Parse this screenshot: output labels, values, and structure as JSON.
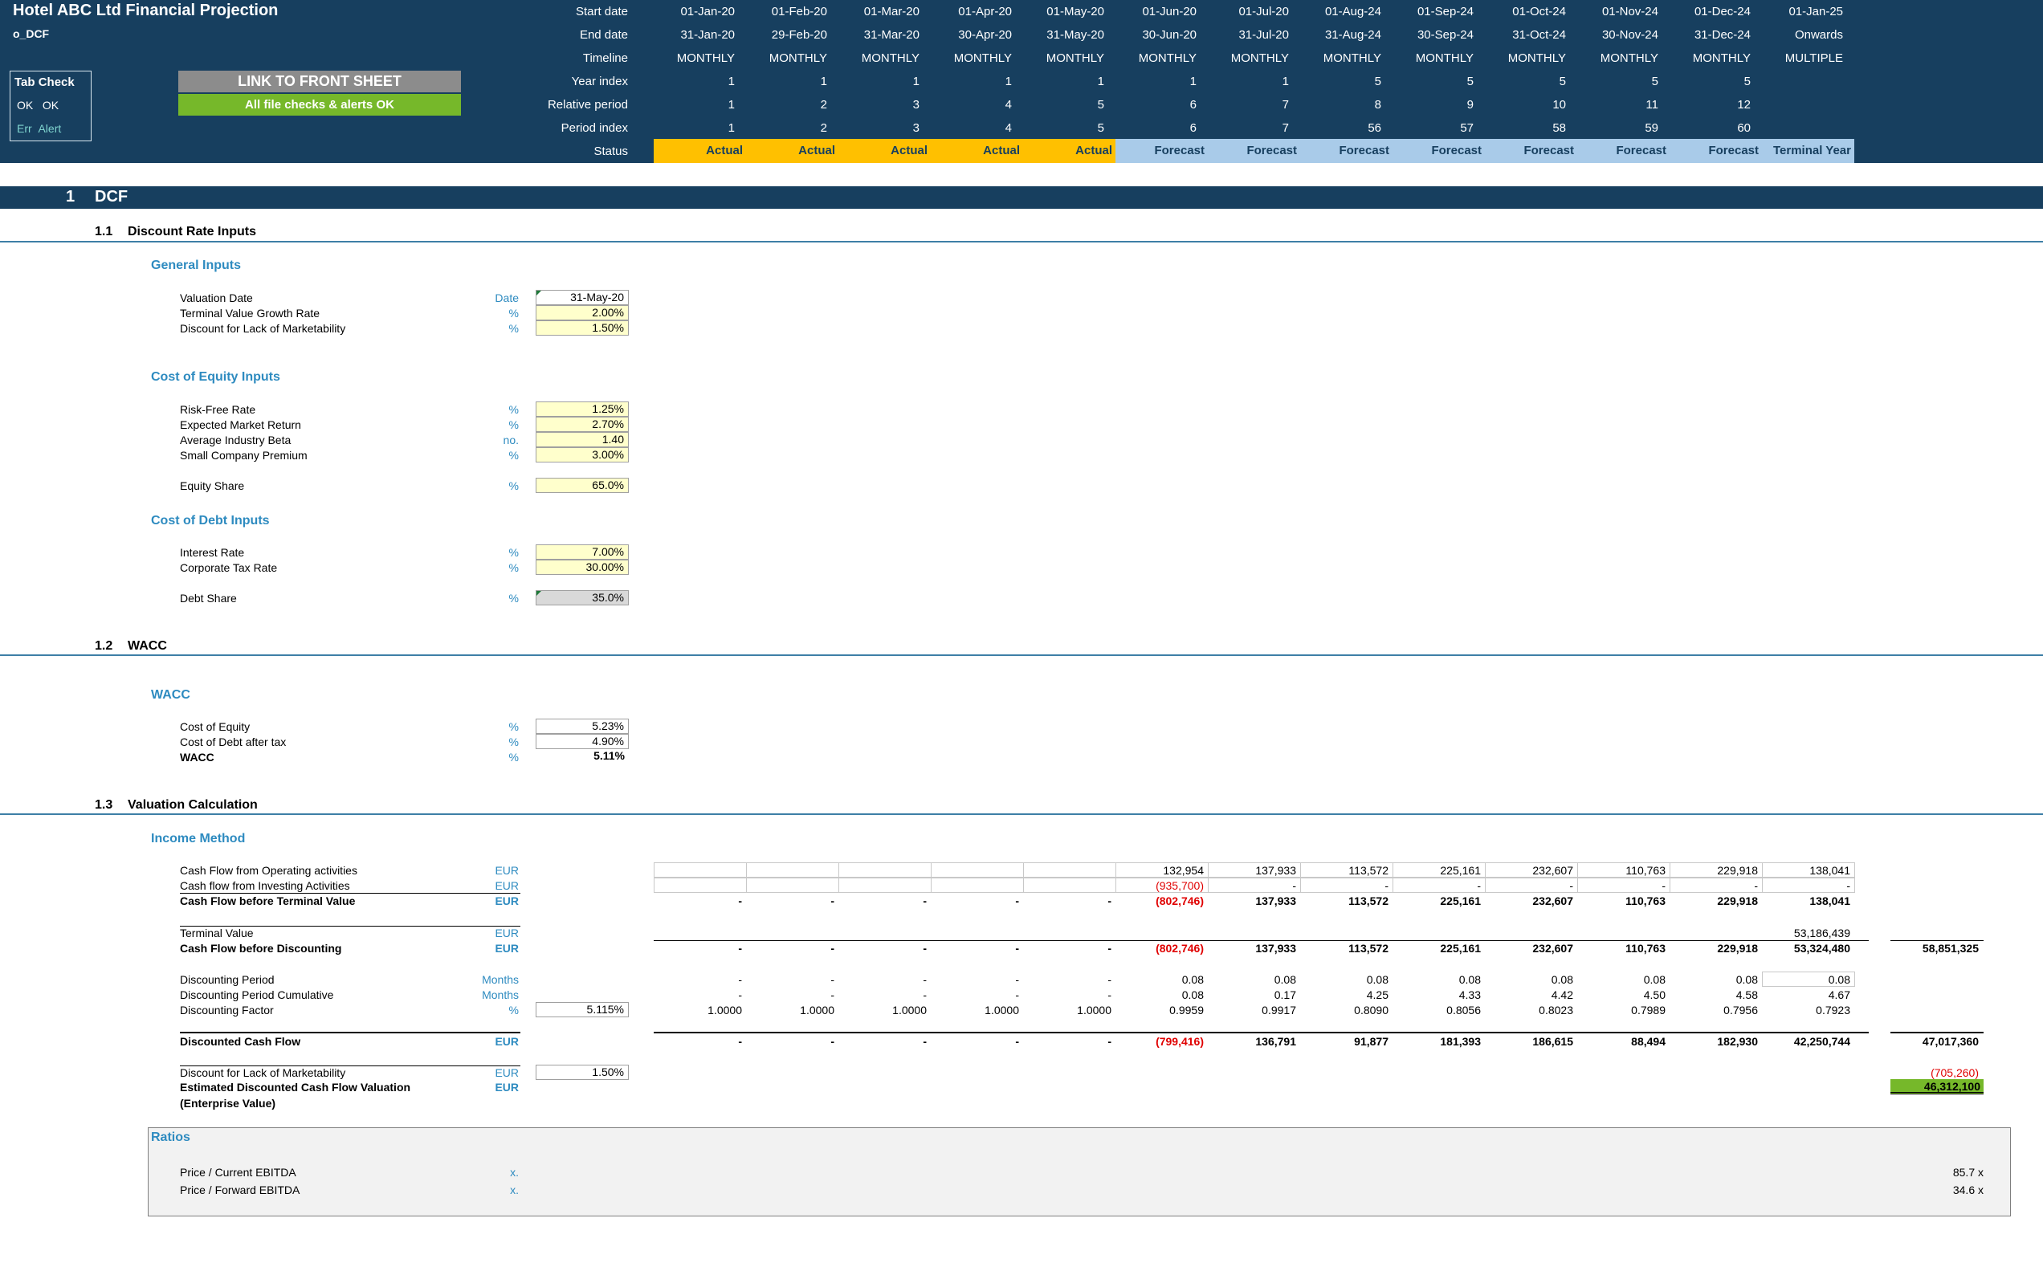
{
  "header": {
    "title": "Hotel ABC Ltd Financial Projection",
    "sheet": "o_DCF",
    "tab_check": {
      "title": "Tab Check",
      "ok1": "OK",
      "ok2": "OK",
      "err": "Err",
      "alert": "Alert"
    },
    "link_button": "LINK TO FRONT SHEET",
    "checks_status": "All file checks & alerts OK",
    "row_labels": {
      "start_date": "Start date",
      "end_date": "End date",
      "timeline": "Timeline",
      "year_index": "Year index",
      "relative_period": "Relative period",
      "period_index": "Period index",
      "status": "Status"
    },
    "columns": [
      {
        "start": "01-Jan-20",
        "end": "31-Jan-20",
        "timeline": "MONTHLY",
        "year": "1",
        "rel": "1",
        "idx": "1",
        "status": "Actual"
      },
      {
        "start": "01-Feb-20",
        "end": "29-Feb-20",
        "timeline": "MONTHLY",
        "year": "1",
        "rel": "2",
        "idx": "2",
        "status": "Actual"
      },
      {
        "start": "01-Mar-20",
        "end": "31-Mar-20",
        "timeline": "MONTHLY",
        "year": "1",
        "rel": "3",
        "idx": "3",
        "status": "Actual"
      },
      {
        "start": "01-Apr-20",
        "end": "30-Apr-20",
        "timeline": "MONTHLY",
        "year": "1",
        "rel": "4",
        "idx": "4",
        "status": "Actual"
      },
      {
        "start": "01-May-20",
        "end": "31-May-20",
        "timeline": "MONTHLY",
        "year": "1",
        "rel": "5",
        "idx": "5",
        "status": "Actual"
      },
      {
        "start": "01-Jun-20",
        "end": "30-Jun-20",
        "timeline": "MONTHLY",
        "year": "1",
        "rel": "6",
        "idx": "6",
        "status": "Forecast"
      },
      {
        "start": "01-Jul-20",
        "end": "31-Jul-20",
        "timeline": "MONTHLY",
        "year": "1",
        "rel": "7",
        "idx": "7",
        "status": "Forecast"
      },
      {
        "start": "01-Aug-24",
        "end": "31-Aug-24",
        "timeline": "MONTHLY",
        "year": "5",
        "rel": "8",
        "idx": "56",
        "status": "Forecast"
      },
      {
        "start": "01-Sep-24",
        "end": "30-Sep-24",
        "timeline": "MONTHLY",
        "year": "5",
        "rel": "9",
        "idx": "57",
        "status": "Forecast"
      },
      {
        "start": "01-Oct-24",
        "end": "31-Oct-24",
        "timeline": "MONTHLY",
        "year": "5",
        "rel": "10",
        "idx": "58",
        "status": "Forecast"
      },
      {
        "start": "01-Nov-24",
        "end": "30-Nov-24",
        "timeline": "MONTHLY",
        "year": "5",
        "rel": "11",
        "idx": "59",
        "status": "Forecast"
      },
      {
        "start": "01-Dec-24",
        "end": "31-Dec-24",
        "timeline": "MONTHLY",
        "year": "5",
        "rel": "12",
        "idx": "60",
        "status": "Forecast"
      },
      {
        "start": "01-Jan-25",
        "end": "Onwards",
        "timeline": "MULTIPLE",
        "year": "",
        "rel": "",
        "idx": "",
        "status": "Terminal Year"
      }
    ],
    "colors": {
      "navy": "#173f5f",
      "actual": "#ffc000",
      "forecast": "#a9cbe9",
      "ok_green": "#76b82a"
    }
  },
  "section": {
    "num": "1",
    "title": "DCF"
  },
  "s11": {
    "num": "1.1",
    "title": "Discount Rate Inputs",
    "general": {
      "title": "General Inputs",
      "rows": [
        {
          "label": "Valuation Date",
          "unit": "Date",
          "value": "31-May-20"
        },
        {
          "label": "Terminal Value Growth Rate",
          "unit": "%",
          "value": "2.00%"
        },
        {
          "label": "Discount for Lack of Marketability",
          "unit": "%",
          "value": "1.50%"
        }
      ]
    },
    "equity": {
      "title": "Cost of Equity Inputs",
      "rows": [
        {
          "label": "Risk-Free Rate",
          "unit": "%",
          "value": "1.25%"
        },
        {
          "label": "Expected Market Return",
          "unit": "%",
          "value": "2.70%"
        },
        {
          "label": "Average Industry Beta",
          "unit": "no.",
          "value": "1.40"
        },
        {
          "label": "Small Company Premium",
          "unit": "%",
          "value": "3.00%"
        }
      ],
      "share": {
        "label": "Equity Share",
        "unit": "%",
        "value": "65.0%"
      }
    },
    "debt": {
      "title": "Cost of Debt Inputs",
      "rows": [
        {
          "label": "Interest Rate",
          "unit": "%",
          "value": "7.00%"
        },
        {
          "label": "Corporate Tax Rate",
          "unit": "%",
          "value": "30.00%"
        }
      ],
      "share": {
        "label": "Debt Share",
        "unit": "%",
        "value": "35.0%"
      }
    }
  },
  "s12": {
    "num": "1.2",
    "title": "WACC",
    "group": "WACC",
    "rows": [
      {
        "label": "Cost of Equity",
        "unit": "%",
        "value": "5.23%"
      },
      {
        "label": "Cost of Debt after tax",
        "unit": "%",
        "value": "4.90%"
      },
      {
        "label": "WACC",
        "unit": "%",
        "value": "5.11%"
      }
    ]
  },
  "s13": {
    "num": "1.3",
    "title": "Valuation Calculation",
    "group": "Income Method",
    "cfo": {
      "label": "Cash Flow from Operating activities",
      "unit": "EUR",
      "values": [
        "132,954",
        "137,933",
        "113,572",
        "225,161",
        "232,607",
        "110,763",
        "229,918",
        "138,041"
      ]
    },
    "cfi": {
      "label": "Cash flow from Investing Activities",
      "unit": "EUR",
      "values": [
        "(935,700)",
        "-",
        "-",
        "-",
        "-",
        "-",
        "-",
        "-"
      ]
    },
    "cfbtv": {
      "label": "Cash Flow before Terminal Value",
      "unit": "EUR",
      "values": [
        "-",
        "-",
        "-",
        "-",
        "-",
        "(802,746)",
        "137,933",
        "113,572",
        "225,161",
        "232,607",
        "110,763",
        "229,918",
        "138,041"
      ]
    },
    "tv": {
      "label": "Terminal Value",
      "unit": "EUR",
      "value": "53,186,439"
    },
    "cfbd": {
      "label": "Cash Flow before Discounting",
      "unit": "EUR",
      "values": [
        "-",
        "-",
        "-",
        "-",
        "-",
        "(802,746)",
        "137,933",
        "113,572",
        "225,161",
        "232,607",
        "110,763",
        "229,918",
        "53,324,480"
      ],
      "total": "58,851,325"
    },
    "dp": {
      "label": "Discounting Period",
      "unit": "Months",
      "values": [
        "-",
        "-",
        "-",
        "-",
        "-",
        "0.08",
        "0.08",
        "0.08",
        "0.08",
        "0.08",
        "0.08",
        "0.08",
        "0.08"
      ]
    },
    "dpc": {
      "label": "Discounting Period Cumulative",
      "unit": "Months",
      "values": [
        "-",
        "-",
        "-",
        "-",
        "-",
        "0.08",
        "0.17",
        "4.25",
        "4.33",
        "4.42",
        "4.50",
        "4.58",
        "4.67"
      ]
    },
    "df": {
      "label": "Discounting Factor",
      "unit": "%",
      "input": "5.115%",
      "values": [
        "1.0000",
        "1.0000",
        "1.0000",
        "1.0000",
        "1.0000",
        "0.9959",
        "0.9917",
        "0.8090",
        "0.8056",
        "0.8023",
        "0.7989",
        "0.7956",
        "0.7923"
      ]
    },
    "dcf": {
      "label": "Discounted Cash Flow",
      "unit": "EUR",
      "values": [
        "-",
        "-",
        "-",
        "-",
        "-",
        "(799,416)",
        "136,791",
        "91,877",
        "181,393",
        "186,615",
        "88,494",
        "182,930",
        "42,250,744"
      ],
      "total": "47,017,360"
    },
    "dlom": {
      "label": "Discount for Lack of Marketability",
      "unit": "EUR",
      "input": "1.50%",
      "total": "(705,260)"
    },
    "edcf": {
      "label": "Estimated Discounted Cash Flow Valuation",
      "label2": "(Enterprise Value)",
      "unit": "EUR",
      "total": "46,312,100"
    }
  },
  "ratios": {
    "title": "Ratios",
    "rows": [
      {
        "label": "Price / Current EBITDA",
        "unit": "x.",
        "value": "85.7 x"
      },
      {
        "label": "Price / Forward EBITDA",
        "unit": "x.",
        "value": "34.6 x"
      }
    ]
  }
}
